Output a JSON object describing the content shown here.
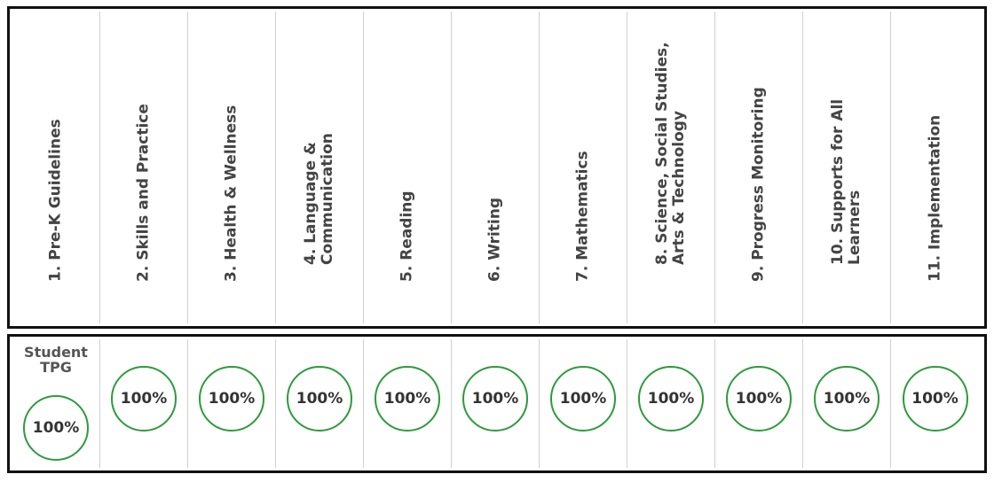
{
  "headers": [
    "1. Pre-K Guidelines",
    "2. Skills and Practice",
    "3. Health & Wellness",
    "4. Language &\nCommunication",
    "5. Reading",
    "6. Writing",
    "7. Mathematics",
    "8. Science, Social Studies,\nArts & Technology",
    "9. Progress Monitoring",
    "10. Supports for All\nLearners",
    "11. Implementation"
  ],
  "row_label": "Student\nTPG",
  "scores": [
    "100%",
    "100%",
    "100%",
    "100%",
    "100%",
    "100%",
    "100%",
    "100%",
    "100%",
    "100%",
    "100%"
  ],
  "colors": {
    "circle_border": "#2e9a3d",
    "frame_border": "#111111"
  }
}
